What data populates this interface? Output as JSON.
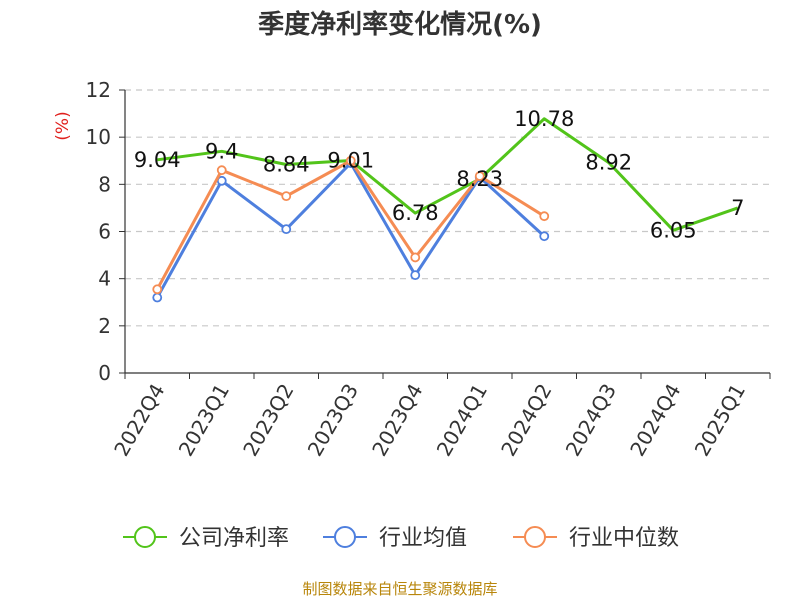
{
  "chart_data": {
    "type": "line",
    "title": "季度净利率变化情况(%)",
    "y_unit": "(%)",
    "categories": [
      "2022Q4",
      "2023Q1",
      "2023Q2",
      "2023Q3",
      "2023Q4",
      "2024Q1",
      "2024Q2",
      "2024Q3",
      "2024Q4",
      "2025Q1"
    ],
    "ylim": [
      0,
      12
    ],
    "yticks": [
      0,
      2,
      4,
      6,
      8,
      10,
      12
    ],
    "grid": true,
    "legend_position": "bottom",
    "series": [
      {
        "name": "公司净利率",
        "color": "#52c41a",
        "values": [
          9.04,
          9.4,
          8.84,
          9.01,
          6.78,
          8.23,
          10.78,
          8.92,
          6.05,
          7
        ],
        "labels": [
          "9.04",
          "9.4",
          "8.84",
          "9.01",
          "6.78",
          "8.23",
          "10.78",
          "8.92",
          "6.05",
          "7"
        ],
        "markers": false
      },
      {
        "name": "行业均值",
        "color": "#4e7fde",
        "values": [
          3.2,
          8.15,
          6.1,
          8.9,
          4.15,
          8.3,
          5.8,
          null,
          null,
          null
        ],
        "markers": true
      },
      {
        "name": "行业中位数",
        "color": "#f58c53",
        "values": [
          3.55,
          8.6,
          7.5,
          9.0,
          4.9,
          8.35,
          6.65,
          null,
          null,
          null
        ],
        "markers": true
      }
    ],
    "source": "制图数据来自恒生聚源数据库"
  }
}
